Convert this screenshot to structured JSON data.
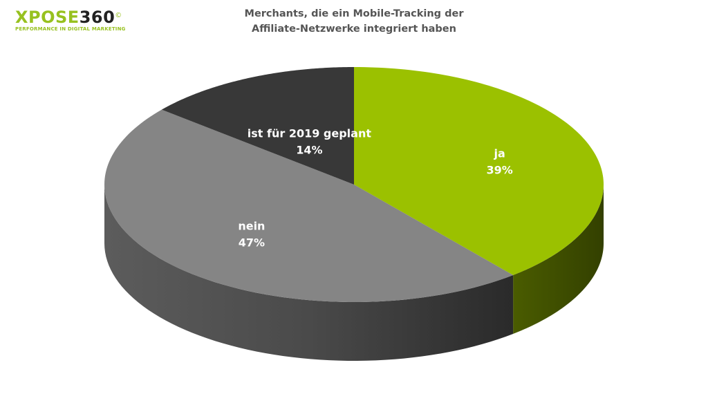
{
  "logo": {
    "text_prefix": "XPOSE",
    "text_suffix": "360",
    "mark": "©",
    "tagline": "PERFORMANCE IN DIGITAL MARKETING",
    "accent_color": "#97c11f"
  },
  "chart_data": {
    "type": "pie",
    "title_line1": "Merchants, die ein Mobile-Tracking der",
    "title_line2": "Affiliate-Netzwerke integriert haben",
    "slices": [
      {
        "label": "ja",
        "value": 39,
        "display": "39%",
        "color": "#9bc100",
        "side_color": "#3f4d00"
      },
      {
        "label": "nein",
        "value": 47,
        "display": "47%",
        "color": "#858585",
        "side_color": "#4a4a4a"
      },
      {
        "label": "ist für 2019 geplant",
        "value": 14,
        "display": "14%",
        "color": "#383838",
        "side_color": "#222222"
      }
    ]
  }
}
